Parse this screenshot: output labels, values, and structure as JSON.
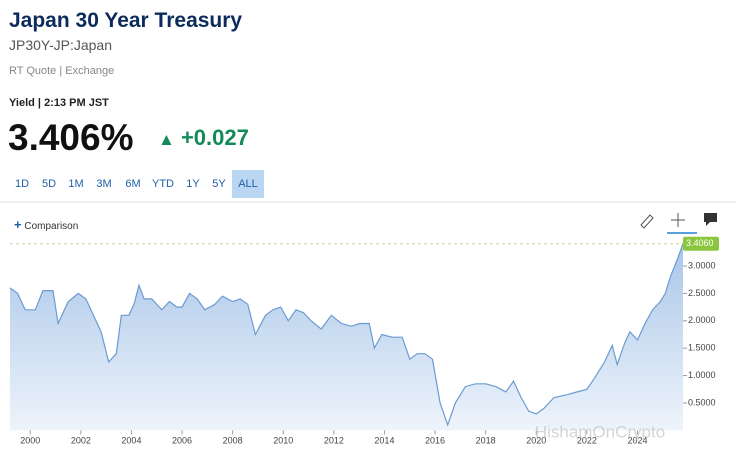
{
  "header": {
    "title": "Japan 30 Year Treasury",
    "symbol": "JP30Y-JP:Japan",
    "quote_source": "RT Quote | Exchange",
    "timestamp": "Yield | 2:13 PM JST",
    "price": "3.406%",
    "change": "+0.027"
  },
  "ranges": [
    "1D",
    "5D",
    "1M",
    "3M",
    "6M",
    "YTD",
    "1Y",
    "5Y",
    "ALL"
  ],
  "comparison": "Comparison",
  "watermark": "HishamOnCrypto",
  "chart_data": {
    "type": "area",
    "color": "#6b9bd1",
    "x": [
      1999.2,
      1999.5,
      1999.8,
      2000.2,
      2000.5,
      2000.9,
      2001.1,
      2001.5,
      2001.9,
      2002.2,
      2002.8,
      2003.1,
      2003.4,
      2003.6,
      2003.9,
      2004.1,
      2004.3,
      2004.5,
      2004.8,
      2005.2,
      2005.5,
      2005.8,
      2006.0,
      2006.3,
      2006.6,
      2006.9,
      2007.3,
      2007.6,
      2008.0,
      2008.3,
      2008.6,
      2008.9,
      2009.3,
      2009.6,
      2009.9,
      2010.2,
      2010.5,
      2010.8,
      2011.1,
      2011.5,
      2011.9,
      2012.3,
      2012.7,
      2013.0,
      2013.4,
      2013.6,
      2013.9,
      2014.3,
      2014.7,
      2015.0,
      2015.3,
      2015.6,
      2015.9,
      2016.2,
      2016.5,
      2016.8,
      2017.2,
      2017.6,
      2018.0,
      2018.4,
      2018.8,
      2019.1,
      2019.4,
      2019.7,
      2020.0,
      2020.3,
      2020.7,
      2021.2,
      2021.6,
      2022.0,
      2022.3,
      2022.7,
      2023.0,
      2023.2,
      2023.5,
      2023.7,
      2024.0,
      2024.3,
      2024.6,
      2024.9,
      2025.1,
      2025.3,
      2025.6,
      2025.8
    ],
    "values": [
      2.6,
      2.5,
      2.2,
      2.2,
      2.55,
      2.55,
      1.95,
      2.35,
      2.5,
      2.4,
      1.8,
      1.25,
      1.4,
      2.1,
      2.1,
      2.3,
      2.65,
      2.4,
      2.4,
      2.2,
      2.35,
      2.25,
      2.25,
      2.5,
      2.4,
      2.2,
      2.3,
      2.45,
      2.35,
      2.4,
      2.3,
      1.75,
      2.1,
      2.2,
      2.25,
      2.0,
      2.2,
      2.15,
      2.0,
      1.85,
      2.1,
      1.95,
      1.9,
      1.95,
      1.95,
      1.5,
      1.75,
      1.7,
      1.7,
      1.3,
      1.4,
      1.4,
      1.3,
      0.5,
      0.1,
      0.5,
      0.8,
      0.85,
      0.85,
      0.8,
      0.7,
      0.9,
      0.6,
      0.35,
      0.3,
      0.4,
      0.6,
      0.65,
      0.7,
      0.75,
      0.95,
      1.25,
      1.55,
      1.2,
      1.6,
      1.8,
      1.65,
      1.95,
      2.2,
      2.35,
      2.5,
      2.8,
      3.15,
      3.406
    ],
    "last_value": {
      "value": 3.406,
      "label": "3.4060"
    },
    "xlim": [
      1999.2,
      2025.8
    ],
    "xticks": [
      2000,
      2002,
      2004,
      2006,
      2008,
      2010,
      2012,
      2014,
      2016,
      2018,
      2020,
      2022,
      2024
    ],
    "ylim": [
      0,
      3.6
    ],
    "yticks": [
      {
        "value": 0.5,
        "label": "0.5000"
      },
      {
        "value": 1,
        "label": "1.0000"
      },
      {
        "value": 1.5,
        "label": "1.5000"
      },
      {
        "value": 2,
        "label": "2.0000"
      },
      {
        "value": 2.5,
        "label": "2.5000"
      },
      {
        "value": 3,
        "label": "3.0000"
      }
    ]
  }
}
